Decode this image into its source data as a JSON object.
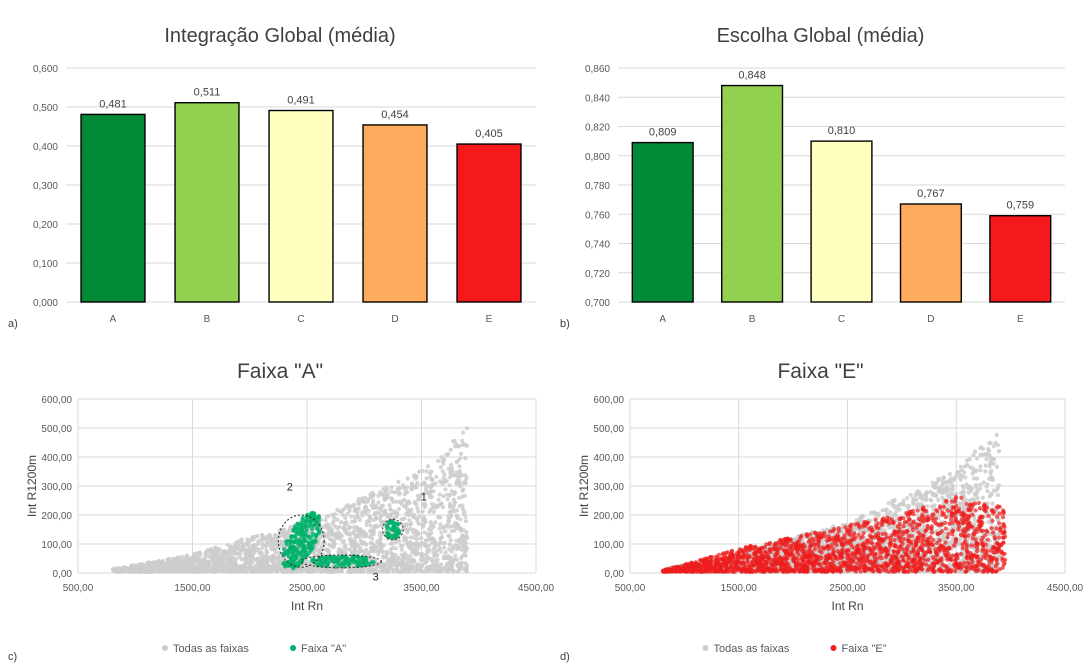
{
  "chart_data": [
    {
      "type": "bar",
      "panel_letter": "a)",
      "title": "Integração Global (média)",
      "categories": [
        "A",
        "B",
        "C",
        "D",
        "E"
      ],
      "values": [
        0.481,
        0.511,
        0.491,
        0.454,
        0.405
      ],
      "value_labels": [
        "0,481",
        "0,511",
        "0,491",
        "0,454",
        "0,405"
      ],
      "colors": [
        "#008a36",
        "#92d050",
        "#ffffc0",
        "#ffab5e",
        "#f5191c"
      ],
      "ylim": [
        0,
        0.6
      ],
      "yticks": [
        "0,000",
        "0,100",
        "0,200",
        "0,300",
        "0,400",
        "0,500",
        "0,600"
      ],
      "grid": true
    },
    {
      "type": "bar",
      "panel_letter": "b)",
      "title": "Escolha Global (média)",
      "categories": [
        "A",
        "B",
        "C",
        "D",
        "E"
      ],
      "values": [
        0.809,
        0.848,
        0.81,
        0.767,
        0.759
      ],
      "value_labels": [
        "0,809",
        "0,848",
        "0,810",
        "0,767",
        "0,759"
      ],
      "colors": [
        "#008a36",
        "#92d050",
        "#ffffc0",
        "#ffab5e",
        "#f5191c"
      ],
      "ylim": [
        0.7,
        0.86
      ],
      "yticks": [
        "0,700",
        "0,720",
        "0,740",
        "0,760",
        "0,780",
        "0,800",
        "0,820",
        "0,840",
        "0,860"
      ],
      "grid": true
    },
    {
      "type": "scatter",
      "panel_letter": "c)",
      "title": "Faixa \"A\"",
      "xlabel": "Int Rn",
      "ylabel": "Int R1200m",
      "xlim": [
        500,
        4500
      ],
      "ylim": [
        0,
        600
      ],
      "xticks": [
        "500,00",
        "1500,00",
        "2500,00",
        "3500,00",
        "4500,00"
      ],
      "yticks": [
        "0,00",
        "100,00",
        "200,00",
        "300,00",
        "400,00",
        "500,00",
        "600,00"
      ],
      "legend": [
        "Todas as faixas",
        "Faixa \"A\""
      ],
      "legend_position": "bottom",
      "series_colors": [
        "#cccccc",
        "#00b26b"
      ],
      "cloud_envelope": [
        [
          800,
          10
        ],
        [
          1500,
          60
        ],
        [
          2000,
          120
        ],
        [
          2500,
          170
        ],
        [
          3000,
          260
        ],
        [
          3500,
          350
        ],
        [
          3900,
          500
        ]
      ],
      "highlight_clusters": [
        {
          "center": [
            2450,
            110
          ],
          "radius_x": 200,
          "radius_y": 90
        },
        {
          "center": [
            3250,
            150
          ],
          "radius_x": 90,
          "radius_y": 35
        },
        {
          "center": [
            2800,
            40
          ],
          "radius_x": 350,
          "radius_y": 22
        }
      ],
      "annotations": [
        {
          "text": "1",
          "x": 3520,
          "y": 250
        },
        {
          "text": "2",
          "x": 2350,
          "y": 285
        },
        {
          "text": "3",
          "x": 3100,
          "y": -25
        }
      ]
    },
    {
      "type": "scatter",
      "panel_letter": "d)",
      "title": "Faixa \"E\"",
      "xlabel": "Int Rn",
      "ylabel": "Int R1200m",
      "xlim": [
        500,
        4500
      ],
      "ylim": [
        0,
        600
      ],
      "xticks": [
        "500,00",
        "1500,00",
        "2500,00",
        "3500,00",
        "4500,00"
      ],
      "yticks": [
        "0,00",
        "100,00",
        "200,00",
        "300,00",
        "400,00",
        "500,00",
        "600,00"
      ],
      "legend": [
        "Todas as faixas",
        "Faixa \"E\""
      ],
      "legend_position": "bottom",
      "series_colors": [
        "#cccccc",
        "#ee1c1c"
      ],
      "cloud_envelope": [
        [
          800,
          10
        ],
        [
          1500,
          60
        ],
        [
          2000,
          120
        ],
        [
          2500,
          170
        ],
        [
          3000,
          260
        ],
        [
          3500,
          350
        ],
        [
          3900,
          500
        ]
      ],
      "highlight_envelope": [
        [
          800,
          5
        ],
        [
          1500,
          80
        ],
        [
          2000,
          120
        ],
        [
          2500,
          160
        ],
        [
          3000,
          200
        ],
        [
          3500,
          260
        ],
        [
          3950,
          220
        ]
      ]
    }
  ]
}
